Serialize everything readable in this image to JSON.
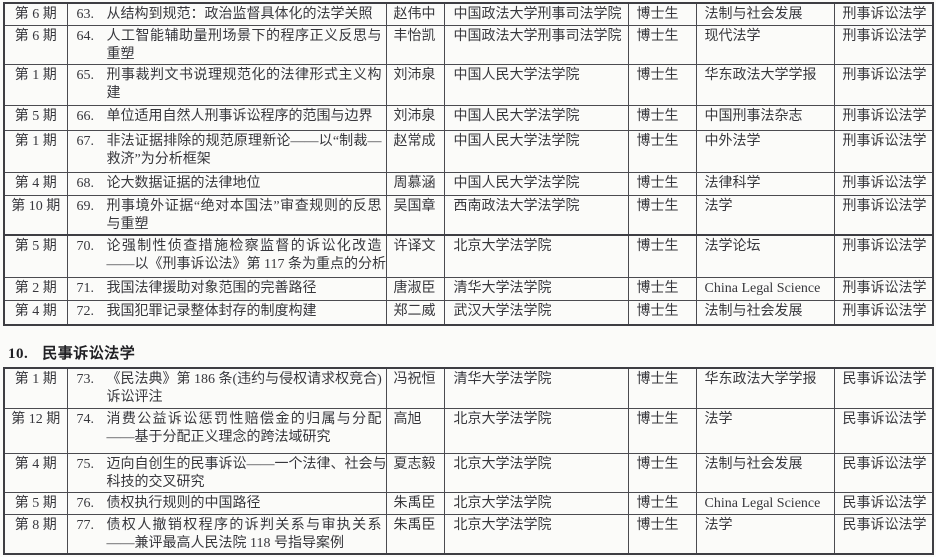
{
  "document": {
    "colors": {
      "text": "#37373c",
      "border": "#4b4b50",
      "background": "#fbfbf9"
    },
    "section_heading": {
      "number": "10.",
      "title": "民事诉讼法学"
    },
    "tables": [
      {
        "id": "criminal-procedure-articles",
        "field_label": "刑事诉讼法学",
        "rows": [
          {
            "issue": "第 6 期",
            "no": "63.",
            "title": "从结构到规范：政治监督具体化的法学关照",
            "author": "赵伟中",
            "institution": "中国政法大学刑事司法学院",
            "degree": "博士生",
            "journal": "法制与社会发展",
            "field": "刑事诉讼法学"
          },
          {
            "issue": "第 6 期",
            "no": "64.",
            "title": "人工智能辅助量刑场景下的程序正义反思与\n重塑",
            "author": "丰怡凯",
            "institution": "中国政法大学刑事司法学院",
            "degree": "博士生",
            "journal": "现代法学",
            "field": "刑事诉讼法学"
          },
          {
            "issue": "第 1 期",
            "no": "65.",
            "title": "刑事裁判文书说理规范化的法律形式主义构\n建",
            "author": "刘沛泉",
            "institution": "中国人民大学法学院",
            "degree": "博士生",
            "journal": "华东政法大学学报",
            "field": "刑事诉讼法学"
          },
          {
            "issue": "第 5 期",
            "no": "66.",
            "title": "单位适用自然人刑事诉讼程序的范围与边界",
            "author": "刘沛泉",
            "institution": "中国人民大学法学院",
            "degree": "博士生",
            "journal": "中国刑事法杂志",
            "field": "刑事诉讼法学"
          },
          {
            "issue": "第 1 期",
            "no": "67.",
            "title": "非法证据排除的规范原理新论——以“制裁—\n救济”为分析框架",
            "author": "赵常成",
            "institution": "中国人民大学法学院",
            "degree": "博士生",
            "journal": "中外法学",
            "field": "刑事诉讼法学"
          },
          {
            "issue": "第 4 期",
            "no": "68.",
            "title": "论大数据证据的法律地位",
            "author": "周慕涵",
            "institution": "中国人民大学法学院",
            "degree": "博士生",
            "journal": "法律科学",
            "field": "刑事诉讼法学"
          },
          {
            "issue": "第 10 期",
            "no": "69.",
            "title": "刑事境外证据“绝对本国法”审查规则的反思\n与重塑",
            "author": "吴国章",
            "institution": "西南政法大学法学院",
            "degree": "博士生",
            "journal": "法学",
            "field": "刑事诉讼法学"
          },
          {
            "issue": "第 5 期",
            "no": "70.",
            "title": "论强制性侦查措施检察监督的诉讼化改造\n——以《刑事诉讼法》第 117 条为重点的分析",
            "author": "许译文",
            "institution": "北京大学法学院",
            "degree": "博士生",
            "journal": "法学论坛",
            "field": "刑事诉讼法学"
          },
          {
            "issue": "第 2 期",
            "no": "71.",
            "title": "我国法律援助对象范围的完善路径",
            "author": "唐淑臣",
            "institution": "清华大学法学院",
            "degree": "博士生",
            "journal": "China Legal Science",
            "field": "刑事诉讼法学"
          },
          {
            "issue": "第 4 期",
            "no": "72.",
            "title": "我国犯罪记录整体封存的制度构建",
            "author": "郑二威",
            "institution": "武汉大学法学院",
            "degree": "博士生",
            "journal": "法制与社会发展",
            "field": "刑事诉讼法学"
          }
        ]
      },
      {
        "id": "civil-procedure-articles",
        "field_label": "民事诉讼法学",
        "rows": [
          {
            "issue": "第 1 期",
            "no": "73.",
            "title": "《民法典》第 186 条(违约与侵权请求权竞合)\n诉讼评注",
            "author": "冯祝恒",
            "institution": "清华大学法学院",
            "degree": "博士生",
            "journal": "华东政法大学学报",
            "field": "民事诉讼法学"
          },
          {
            "issue": "第 12 期",
            "no": "74.",
            "title": "消费公益诉讼惩罚性赔偿金的归属与分配\n——基于分配正义理念的跨法域研究",
            "author": "高旭",
            "institution": "北京大学法学院",
            "degree": "博士生",
            "journal": "法学",
            "field": "民事诉讼法学"
          },
          {
            "issue": "第 4 期",
            "no": "75.",
            "title": "迈向自创生的民事诉讼——一个法律、社会与\n科技的交叉研究",
            "author": "夏志毅",
            "institution": "北京大学法学院",
            "degree": "博士生",
            "journal": "法制与社会发展",
            "field": "民事诉讼法学"
          },
          {
            "issue": "第 5 期",
            "no": "76.",
            "title": "债权执行规则的中国路径",
            "author": "朱禹臣",
            "institution": "北京大学法学院",
            "degree": "博士生",
            "journal": "China Legal Science",
            "field": "民事诉讼法学"
          },
          {
            "issue": "第 8 期",
            "no": "77.",
            "title": "债权人撤销权程序的诉判关系与审执关系\n——兼评最高人民法院 118 号指导案例",
            "author": "朱禹臣",
            "institution": "北京大学法学院",
            "degree": "博士生",
            "journal": "法学",
            "field": "民事诉讼法学"
          }
        ]
      }
    ]
  }
}
